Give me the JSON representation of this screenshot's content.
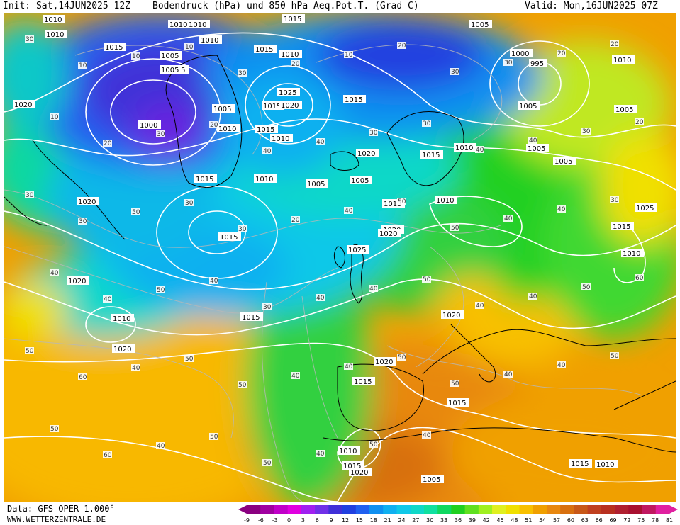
{
  "header": {
    "init": "Init: Sat,14JUN2025 12Z",
    "title": "Bodendruck (hPa) und 850 hPa Aeq.Pot.T. (Grad C)",
    "valid": "Valid: Mon,16JUN2025 07Z"
  },
  "footer": {
    "data_source": "Data: GFS OPER 1.000°",
    "website": "WWW.WETTERZENTRALE.DE"
  },
  "colorbar": {
    "ticks": [
      "-9",
      "-6",
      "-3",
      "0",
      "3",
      "6",
      "9",
      "12",
      "15",
      "18",
      "21",
      "24",
      "27",
      "30",
      "33",
      "36",
      "39",
      "42",
      "45",
      "48",
      "51",
      "54",
      "57",
      "60",
      "63",
      "66",
      "69",
      "72",
      "75",
      "78",
      "81"
    ],
    "colors": [
      "#8a0080",
      "#a000a0",
      "#c000c8",
      "#e000e0",
      "#a020f0",
      "#7030e8",
      "#4030d8",
      "#2040e0",
      "#2060f0",
      "#1090f0",
      "#10b0f0",
      "#10c8e8",
      "#10d8c8",
      "#10e0a0",
      "#10d860",
      "#20d020",
      "#60e020",
      "#a0f020",
      "#e0f020",
      "#f0e000",
      "#f8c000",
      "#f0a000",
      "#e88810",
      "#d87010",
      "#c85818",
      "#c04020",
      "#b83020",
      "#b02030",
      "#a81030",
      "#c01860",
      "#e020a0"
    ]
  },
  "map": {
    "pressure_labels": [
      {
        "t": "1010"
      },
      {
        "t": "1010"
      },
      {
        "t": "1015"
      },
      {
        "t": "1010"
      },
      {
        "t": "1010"
      },
      {
        "t": "1010"
      },
      {
        "t": "1005"
      },
      {
        "t": "1015"
      },
      {
        "t": "1000"
      },
      {
        "t": "1005"
      },
      {
        "t": "1005"
      },
      {
        "t": "1010"
      },
      {
        "t": "1015"
      },
      {
        "t": "1015"
      },
      {
        "t": "1010"
      },
      {
        "t": "1015"
      },
      {
        "t": "1025"
      },
      {
        "t": "1020"
      },
      {
        "t": "1015"
      },
      {
        "t": "1010"
      },
      {
        "t": "1015"
      },
      {
        "t": "1005"
      },
      {
        "t": "1000"
      },
      {
        "t": "995"
      },
      {
        "t": "1010"
      },
      {
        "t": "1005"
      },
      {
        "t": "1005"
      },
      {
        "t": "1005"
      },
      {
        "t": "1020"
      },
      {
        "t": "1015"
      },
      {
        "t": "1010"
      },
      {
        "t": "1005"
      },
      {
        "t": "1005"
      },
      {
        "t": "1005"
      },
      {
        "t": "1010"
      },
      {
        "t": "1015"
      },
      {
        "t": "1015"
      },
      {
        "t": "1010"
      },
      {
        "t": "1020"
      },
      {
        "t": "1025"
      },
      {
        "t": "1015"
      },
      {
        "t": "1020"
      },
      {
        "t": "1015"
      },
      {
        "t": "1010"
      },
      {
        "t": "1020"
      },
      {
        "t": "1020"
      },
      {
        "t": "1020"
      },
      {
        "t": "1025"
      },
      {
        "t": "1020"
      },
      {
        "t": "1020"
      },
      {
        "t": "1015"
      },
      {
        "t": "1020"
      },
      {
        "t": "1015"
      },
      {
        "t": "1015"
      },
      {
        "t": "1015"
      },
      {
        "t": "1010"
      },
      {
        "t": "1015"
      },
      {
        "t": "1010"
      },
      {
        "t": "1005"
      },
      {
        "t": "1010"
      },
      {
        "t": "1020"
      }
    ],
    "theta_labels": [
      "30",
      "10",
      "10",
      "10",
      "30",
      "20",
      "10",
      "20",
      "30",
      "30",
      "20",
      "20",
      "10",
      "20",
      "30",
      "20",
      "40",
      "40",
      "30",
      "30",
      "40",
      "40",
      "30",
      "20",
      "30",
      "30",
      "50",
      "30",
      "30",
      "20",
      "40",
      "50",
      "50",
      "40",
      "40",
      "30",
      "40",
      "40",
      "50",
      "40",
      "30",
      "40",
      "40",
      "50",
      "40",
      "40",
      "50",
      "60",
      "50",
      "60",
      "40",
      "50",
      "50",
      "40",
      "40",
      "50",
      "50",
      "40",
      "40",
      "50",
      "50",
      "60",
      "40",
      "50",
      "50",
      "40",
      "50",
      "40"
    ]
  }
}
